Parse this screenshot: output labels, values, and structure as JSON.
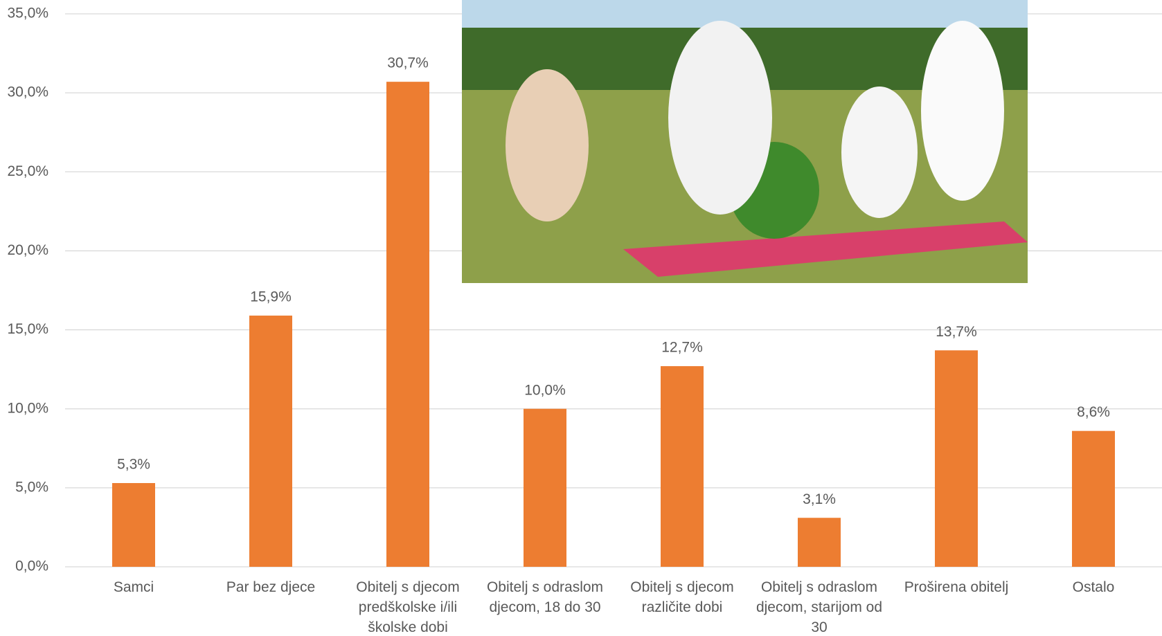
{
  "chart_data": {
    "type": "bar",
    "categories": [
      "Samci",
      "Par bez djece",
      "Obitelj s djecom predškolske i/ili školske dobi",
      "Obitelj s odraslom djecom, 18 do 30",
      "Obitelj s djecom različite dobi",
      "Obitelj s odraslom djecom, starijom od 30",
      "Proširena obitelj",
      "Ostalo"
    ],
    "values": [
      5.3,
      15.9,
      30.7,
      10.0,
      12.7,
      3.1,
      13.7,
      8.6
    ],
    "value_labels": [
      "5,3%",
      "15,9%",
      "30,7%",
      "10,0%",
      "12,7%",
      "3,1%",
      "13,7%",
      "8,6%"
    ],
    "color": "#ed7d31",
    "ylim": [
      0,
      35
    ],
    "yticks": [
      {
        "value": 0,
        "label": "0,0%"
      },
      {
        "value": 5,
        "label": "5,0%"
      },
      {
        "value": 10,
        "label": "10,0%"
      },
      {
        "value": 15,
        "label": "15,0%"
      },
      {
        "value": 20,
        "label": "20,0%"
      },
      {
        "value": 25,
        "label": "25,0%"
      },
      {
        "value": 30,
        "label": "30,0%"
      },
      {
        "value": 35,
        "label": "35,0%"
      }
    ],
    "grid": true
  }
}
